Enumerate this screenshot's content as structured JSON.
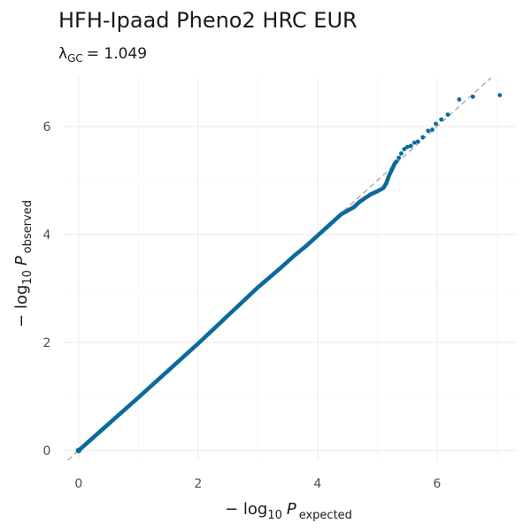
{
  "chart_data": {
    "type": "scatter",
    "title": "HFH-Ipaad Pheno2 HRC EUR",
    "subtitle": {
      "lambda_symbol": "λ",
      "lambda_sub": "GC",
      "value": "= 1.049"
    },
    "xlabel": {
      "prefix": "− log",
      "base": "10",
      "P": "P",
      "sub": "expected"
    },
    "ylabel": {
      "prefix": "− log",
      "base": "10",
      "P": "P",
      "sub": "observed"
    },
    "xlim": [
      -0.25,
      7.35
    ],
    "ylim": [
      -0.18,
      6.9
    ],
    "xticks": [
      0,
      2,
      4,
      6
    ],
    "yticks": [
      0,
      2,
      4,
      6
    ],
    "grid": true,
    "reference_line": "y = x (dashed)",
    "series": [
      {
        "x": [
          0.0,
          0.5,
          1.0,
          1.5,
          2.0,
          2.5,
          3.0,
          3.4,
          3.6,
          3.8,
          4.0,
          4.2,
          4.4,
          4.6,
          4.7,
          4.8,
          4.9,
          5.0,
          5.1,
          5.15,
          5.2,
          5.25,
          5.3
        ],
        "y": [
          0.0,
          0.49,
          0.98,
          1.48,
          1.98,
          2.5,
          3.02,
          3.4,
          3.6,
          3.78,
          3.98,
          4.18,
          4.38,
          4.5,
          4.6,
          4.68,
          4.75,
          4.8,
          4.86,
          4.95,
          5.1,
          5.22,
          5.33
        ],
        "points": [
          [
            5.32,
            5.35
          ],
          [
            5.36,
            5.42
          ],
          [
            5.4,
            5.5
          ],
          [
            5.45,
            5.58
          ],
          [
            5.5,
            5.62
          ],
          [
            5.56,
            5.64
          ],
          [
            5.62,
            5.7
          ],
          [
            5.68,
            5.72
          ],
          [
            5.76,
            5.8
          ],
          [
            5.85,
            5.92
          ],
          [
            5.92,
            5.94
          ],
          [
            5.98,
            6.05
          ],
          [
            6.07,
            6.13
          ],
          [
            6.18,
            6.22
          ],
          [
            6.37,
            6.5
          ],
          [
            6.6,
            6.55
          ],
          [
            7.05,
            6.58
          ]
        ]
      }
    ]
  }
}
